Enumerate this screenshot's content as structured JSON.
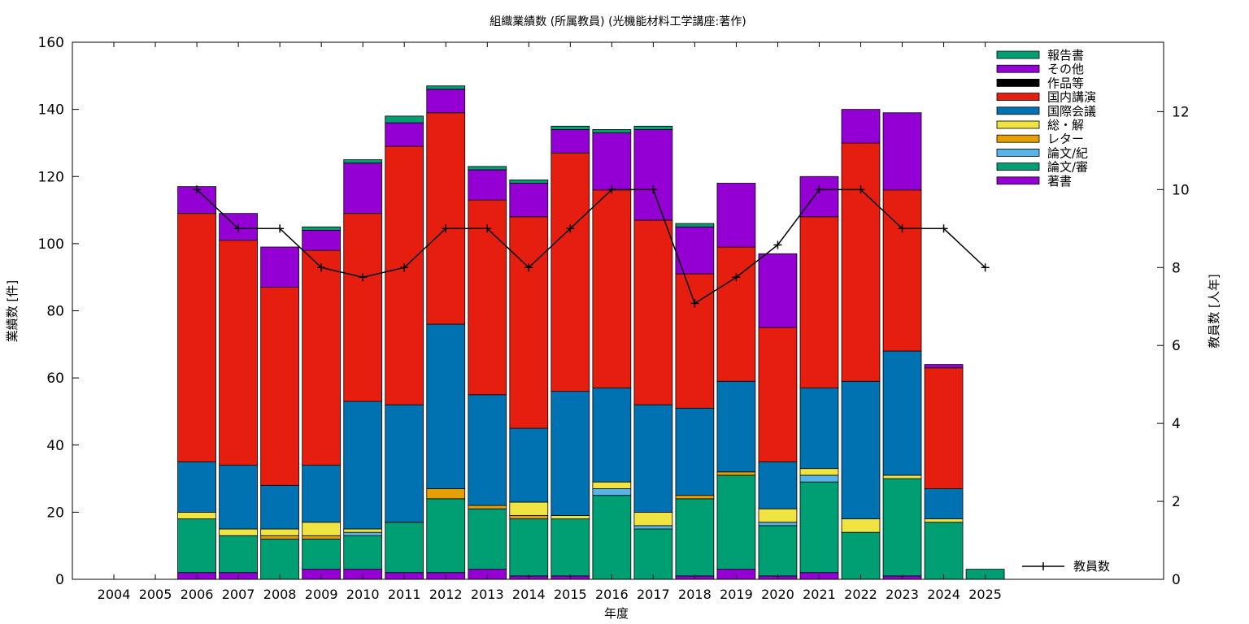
{
  "chart_data": {
    "type": "bar",
    "stacked": true,
    "title": "組織業績数 (所属教員) (光機能材料工学講座:著作)",
    "xlabel": "年度",
    "ylabel": "業績数 [件]",
    "y2label": "教員数 [人年]",
    "ylim": [
      0,
      160
    ],
    "yticks": [
      0,
      20,
      40,
      60,
      80,
      100,
      120,
      140,
      160
    ],
    "y2lim": [
      0,
      13.78
    ],
    "y2ticks": [
      0,
      2,
      4,
      6,
      8,
      10,
      12
    ],
    "categories": [
      "2004",
      "2005",
      "2006",
      "2007",
      "2008",
      "2009",
      "2010",
      "2011",
      "2012",
      "2013",
      "2014",
      "2015",
      "2016",
      "2017",
      "2018",
      "2019",
      "2020",
      "2021",
      "2022",
      "2023",
      "2024",
      "2025"
    ],
    "legend_position": "top-right",
    "series": [
      {
        "name": "著書",
        "color": "#9400d3",
        "values": [
          0,
          0,
          2,
          2,
          0,
          3,
          3,
          2,
          2,
          3,
          1,
          1,
          0,
          0,
          1,
          3,
          1,
          2,
          0,
          1,
          0,
          0
        ]
      },
      {
        "name": "論文/審",
        "color": "#009e73",
        "values": [
          0,
          0,
          16,
          11,
          12,
          9,
          10,
          15,
          22,
          18,
          17,
          17,
          25,
          15,
          23,
          28,
          15,
          27,
          14,
          29,
          17,
          3
        ]
      },
      {
        "name": "論文/紀",
        "color": "#56b4e9",
        "values": [
          0,
          0,
          0,
          0,
          0,
          0,
          1,
          0,
          0,
          0,
          0,
          0,
          2,
          1,
          0,
          0,
          1,
          2,
          0,
          0,
          0,
          0
        ]
      },
      {
        "name": "レター",
        "color": "#e69f00",
        "values": [
          0,
          0,
          0,
          0,
          1,
          1,
          0,
          0,
          3,
          1,
          1,
          0,
          0,
          0,
          1,
          1,
          0,
          0,
          0,
          0,
          0,
          0
        ]
      },
      {
        "name": "総・解",
        "color": "#f0e442",
        "values": [
          0,
          0,
          2,
          2,
          2,
          4,
          1,
          0,
          0,
          0,
          4,
          1,
          2,
          4,
          0,
          0,
          4,
          2,
          4,
          1,
          1,
          0
        ]
      },
      {
        "name": "国際会議",
        "color": "#0072b2",
        "values": [
          0,
          0,
          15,
          19,
          13,
          17,
          38,
          35,
          49,
          33,
          22,
          37,
          28,
          32,
          26,
          27,
          14,
          24,
          41,
          37,
          9,
          0
        ]
      },
      {
        "name": "国内講演",
        "color": "#e51e10",
        "values": [
          0,
          0,
          74,
          67,
          59,
          64,
          56,
          77,
          63,
          58,
          63,
          71,
          59,
          55,
          40,
          40,
          40,
          51,
          71,
          48,
          36,
          0
        ]
      },
      {
        "name": "作品等",
        "color": "#000000",
        "values": [
          0,
          0,
          0,
          0,
          0,
          0,
          0,
          0,
          0,
          0,
          0,
          0,
          0,
          0,
          0,
          0,
          0,
          0,
          0,
          0,
          0,
          0
        ]
      },
      {
        "name": "その他",
        "color": "#9400d3",
        "values": [
          0,
          0,
          8,
          8,
          12,
          6,
          15,
          7,
          7,
          9,
          10,
          7,
          17,
          27,
          14,
          19,
          22,
          12,
          10,
          23,
          1,
          0
        ]
      },
      {
        "name": "報告書",
        "color": "#009e73",
        "values": [
          0,
          0,
          0,
          0,
          0,
          1,
          1,
          2,
          1,
          1,
          1,
          1,
          1,
          1,
          1,
          0,
          0,
          0,
          0,
          0,
          0,
          0
        ]
      }
    ],
    "legend_order": [
      "報告書",
      "その他",
      "作品等",
      "国内講演",
      "国際会議",
      "総・解",
      "レター",
      "論文/紀",
      "論文/審",
      "著書"
    ],
    "line_series": {
      "name": "教員数",
      "color": "#000000",
      "axis": "y2",
      "values": [
        null,
        null,
        10,
        9,
        9,
        8,
        7.75,
        8,
        9,
        9,
        8,
        9,
        10,
        10,
        7.08,
        7.75,
        8.58,
        10,
        10,
        9,
        9,
        8
      ]
    }
  }
}
